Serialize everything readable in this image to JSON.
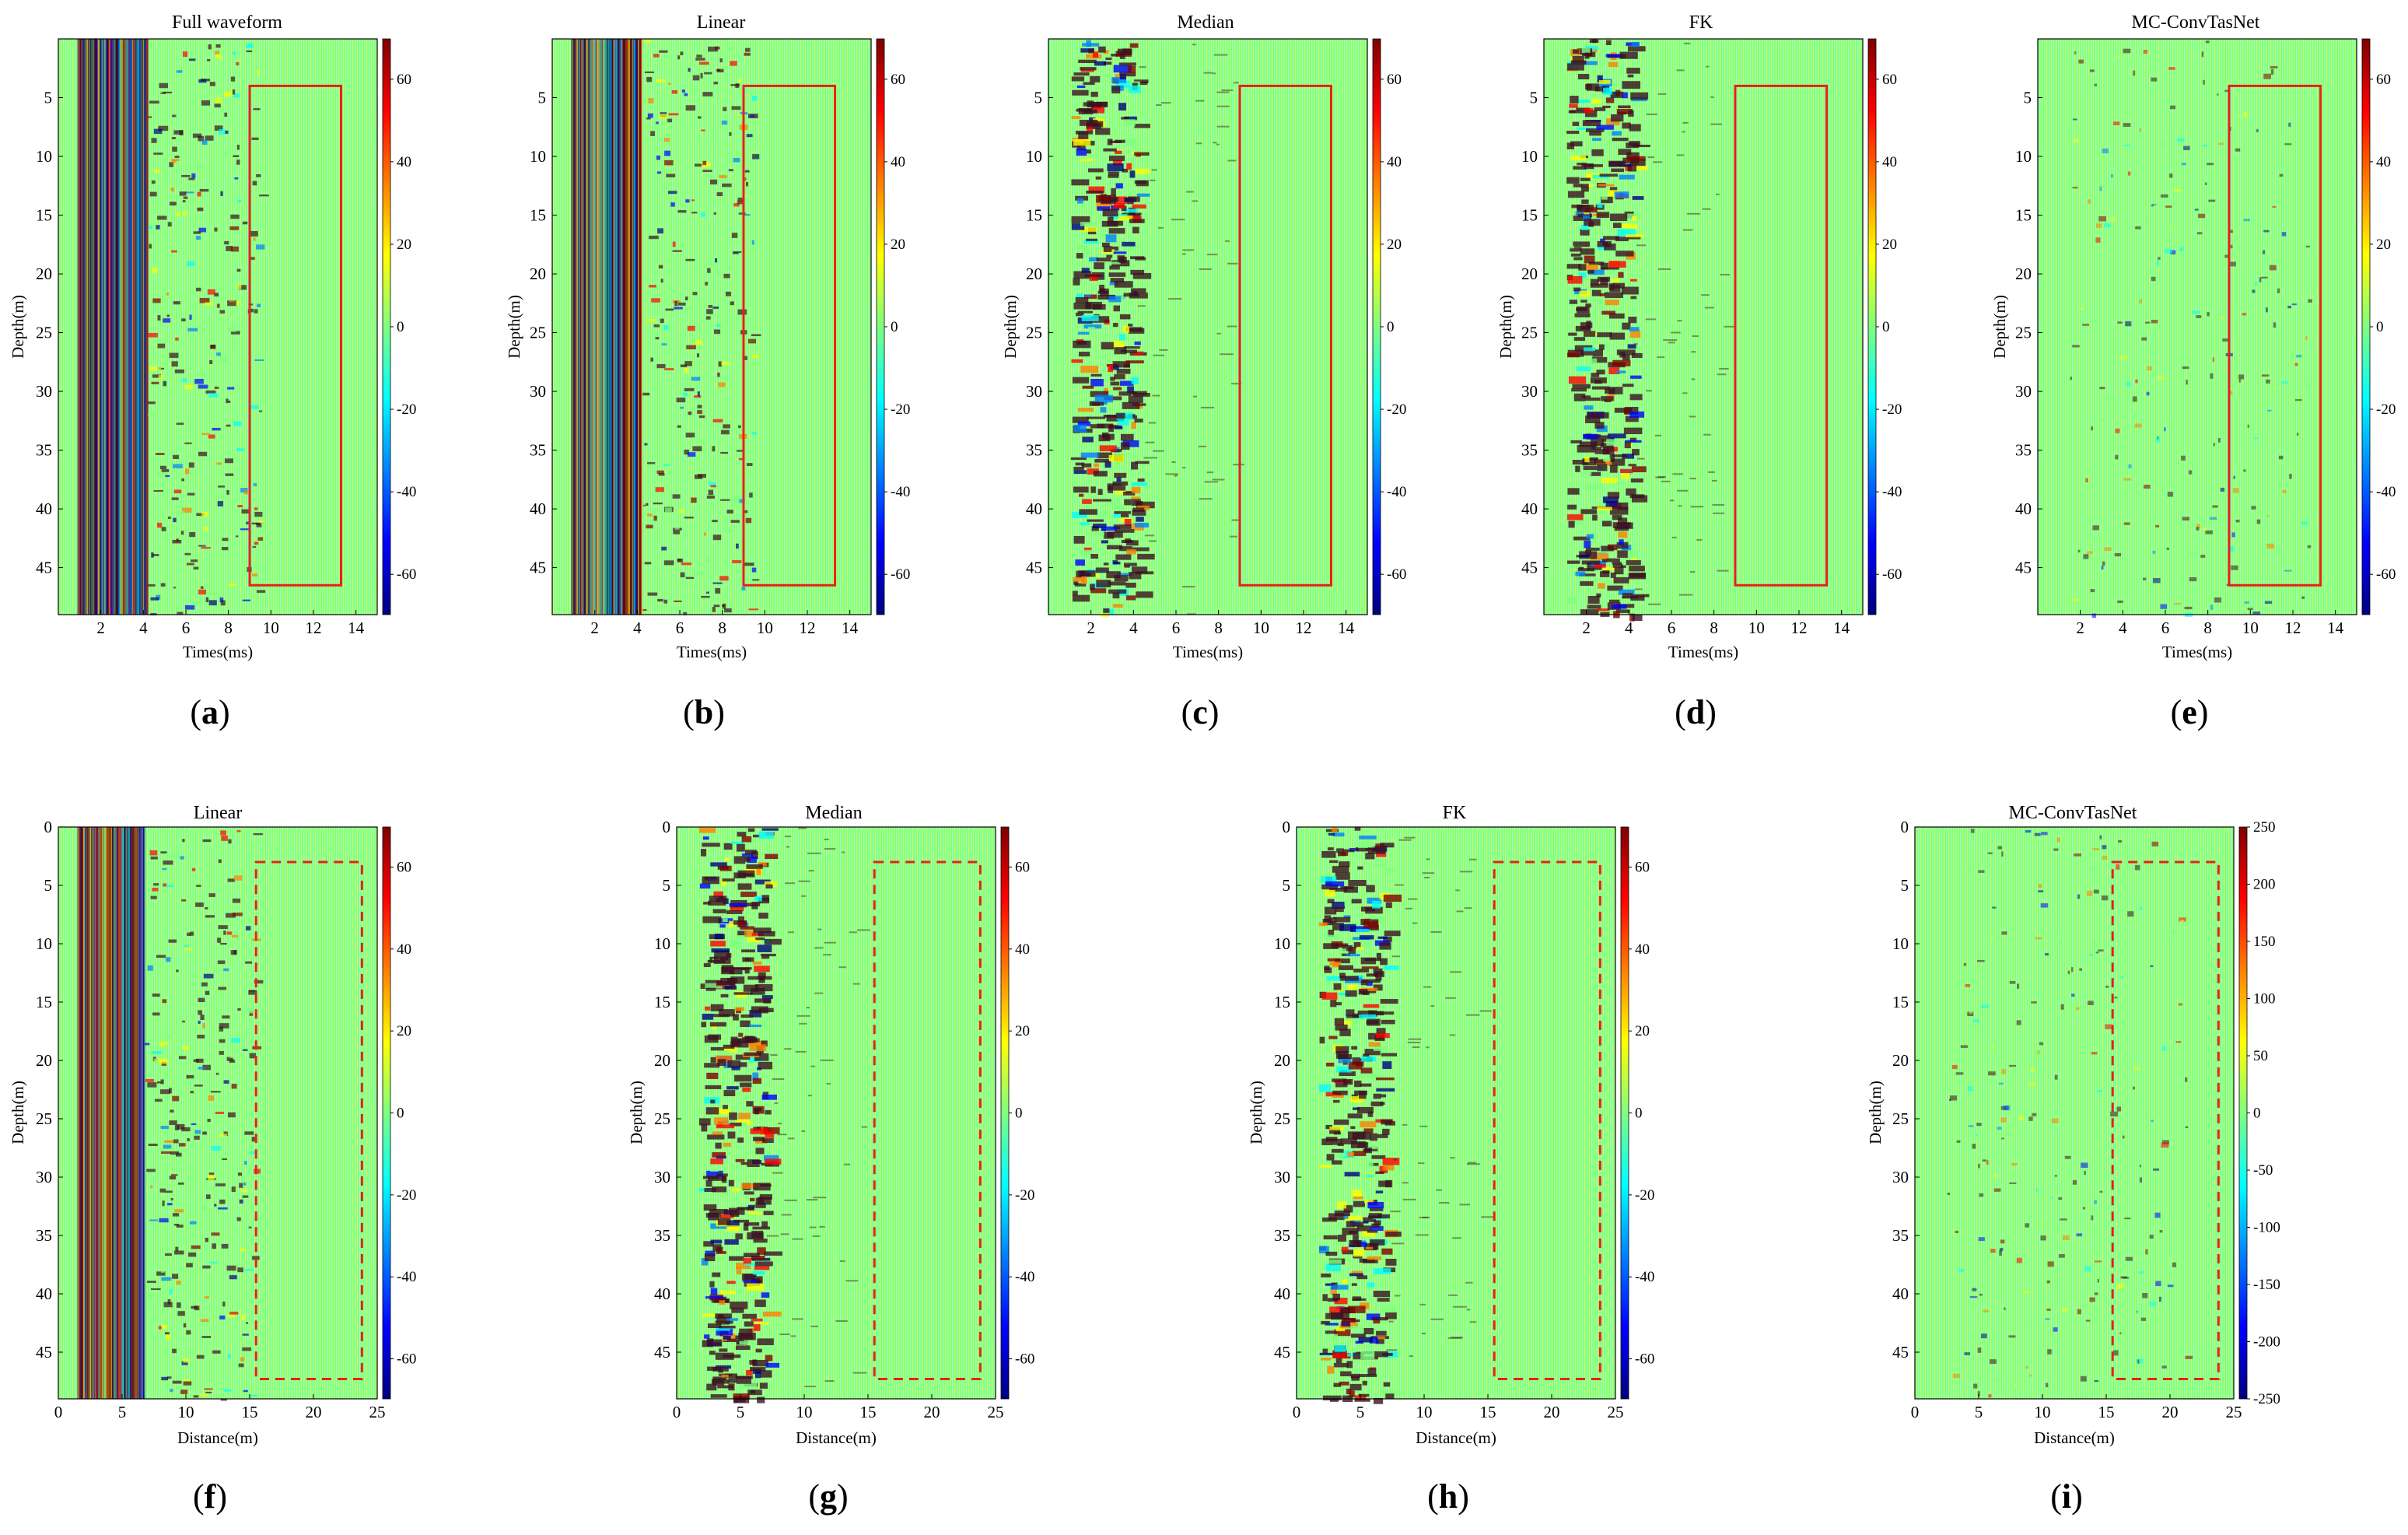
{
  "figure": {
    "panels": [
      {
        "id": "a",
        "label": "a",
        "title": "Full waveform",
        "xlabel": "Times(ms)",
        "ylabel": "Depth(m)",
        "x_ticks": [
          "2",
          "4",
          "6",
          "8",
          "10",
          "12",
          "14"
        ],
        "y_ticks": [
          "5",
          "10",
          "15",
          "20",
          "25",
          "30",
          "35",
          "40",
          "45"
        ],
        "cbar_ticks": [
          "60",
          "40",
          "20",
          "0",
          "-20",
          "-40",
          "-60"
        ],
        "box_style": "solid",
        "content": "full"
      },
      {
        "id": "b",
        "label": "b",
        "title": "Linear",
        "xlabel": "Times(ms)",
        "ylabel": "Depth(m)",
        "x_ticks": [
          "2",
          "4",
          "6",
          "8",
          "10",
          "12",
          "14"
        ],
        "y_ticks": [
          "5",
          "10",
          "15",
          "20",
          "25",
          "30",
          "35",
          "40",
          "45"
        ],
        "cbar_ticks": [
          "60",
          "40",
          "20",
          "0",
          "-20",
          "-40",
          "-60"
        ],
        "box_style": "solid",
        "content": "full"
      },
      {
        "id": "c",
        "label": "c",
        "title": "Median",
        "xlabel": "Times(ms)",
        "ylabel": "Depth(m)",
        "x_ticks": [
          "2",
          "4",
          "6",
          "8",
          "10",
          "12",
          "14"
        ],
        "y_ticks": [
          "5",
          "10",
          "15",
          "20",
          "25",
          "30",
          "35",
          "40",
          "45"
        ],
        "cbar_ticks": [
          "60",
          "40",
          "20",
          "0",
          "-20",
          "-40",
          "-60"
        ],
        "box_style": "solid",
        "content": "band"
      },
      {
        "id": "d",
        "label": "d",
        "title": "FK",
        "xlabel": "Times(ms)",
        "ylabel": "Depth(m)",
        "x_ticks": [
          "2",
          "4",
          "6",
          "8",
          "10",
          "12",
          "14"
        ],
        "y_ticks": [
          "5",
          "10",
          "15",
          "20",
          "25",
          "30",
          "35",
          "40",
          "45"
        ],
        "cbar_ticks": [
          "60",
          "40",
          "20",
          "0",
          "-20",
          "-40",
          "-60"
        ],
        "box_style": "solid",
        "content": "band"
      },
      {
        "id": "e",
        "label": "e",
        "title": "MC-ConvTasNet",
        "xlabel": "Times(ms)",
        "ylabel": "Depth(m)",
        "x_ticks": [
          "2",
          "4",
          "6",
          "8",
          "10",
          "12",
          "14"
        ],
        "y_ticks": [
          "5",
          "10",
          "15",
          "20",
          "25",
          "30",
          "35",
          "40",
          "45"
        ],
        "cbar_ticks": [
          "60",
          "40",
          "20",
          "0",
          "-20",
          "-40",
          "-60"
        ],
        "box_style": "solid",
        "content": "sparse"
      },
      {
        "id": "f",
        "label": "f",
        "title": "Linear",
        "xlabel": "Distance(m)",
        "ylabel": "Depth(m)",
        "x_ticks": [
          "0",
          "5",
          "10",
          "15",
          "20",
          "25"
        ],
        "y_ticks": [
          "0",
          "5",
          "10",
          "15",
          "20",
          "25",
          "30",
          "35",
          "40",
          "45"
        ],
        "cbar_ticks": [
          "60",
          "40",
          "20",
          "0",
          "-20",
          "-40",
          "-60"
        ],
        "box_style": "dashed",
        "content": "full"
      },
      {
        "id": "g",
        "label": "g",
        "title": "Median",
        "xlabel": "Distance(m)",
        "ylabel": "Depth(m)",
        "x_ticks": [
          "0",
          "5",
          "10",
          "15",
          "20",
          "25"
        ],
        "y_ticks": [
          "0",
          "5",
          "10",
          "15",
          "20",
          "25",
          "30",
          "35",
          "40",
          "45"
        ],
        "cbar_ticks": [
          "60",
          "40",
          "20",
          "0",
          "-20",
          "-40",
          "-60"
        ],
        "box_style": "dashed",
        "content": "band"
      },
      {
        "id": "h",
        "label": "h",
        "title": "FK",
        "xlabel": "Distance(m)",
        "ylabel": "Depth(m)",
        "x_ticks": [
          "0",
          "5",
          "10",
          "15",
          "20",
          "25"
        ],
        "y_ticks": [
          "0",
          "5",
          "10",
          "15",
          "20",
          "25",
          "30",
          "35",
          "40",
          "45"
        ],
        "cbar_ticks": [
          "60",
          "40",
          "20",
          "0",
          "-20",
          "-40",
          "-60"
        ],
        "box_style": "dashed",
        "content": "band"
      },
      {
        "id": "i",
        "label": "i",
        "title": "MC-ConvTasNet",
        "xlabel": "Distance(m)",
        "ylabel": "Depth(m)",
        "x_ticks": [
          "0",
          "5",
          "10",
          "15",
          "20",
          "25"
        ],
        "y_ticks": [
          "0",
          "5",
          "10",
          "15",
          "20",
          "25",
          "30",
          "35",
          "40",
          "45"
        ],
        "cbar_ticks": [
          "250",
          "200",
          "150",
          "100",
          "50",
          "0",
          "-50",
          "-100",
          "-150",
          "-200",
          "-250"
        ],
        "box_style": "dashed",
        "content": "sparse"
      }
    ]
  },
  "colors": {
    "background": "#7fff7f",
    "box": "#e8201c",
    "colormap": [
      "#00007f",
      "#0000ff",
      "#007fff",
      "#00ffff",
      "#7fff7f",
      "#ffff00",
      "#ff7f00",
      "#ff0000",
      "#7f0000"
    ],
    "dark_event": "#3b1020"
  }
}
